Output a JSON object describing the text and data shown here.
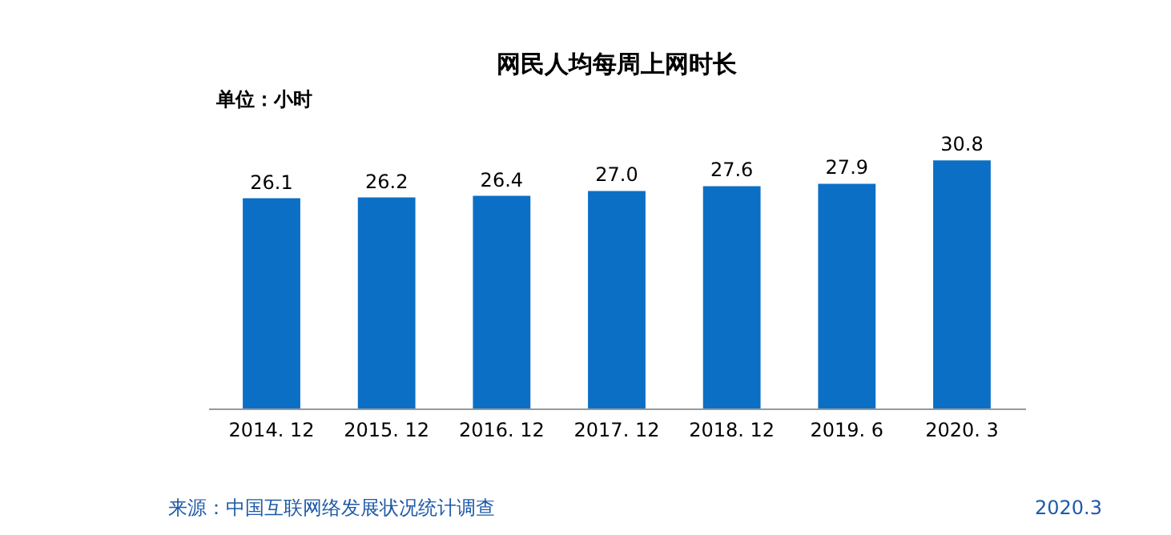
{
  "chart_data": {
    "type": "bar",
    "title": "网民人均每周上网时长",
    "categories": [
      "2014. 12",
      "2015. 12",
      "2016. 12",
      "2017. 12",
      "2018. 12",
      "2019. 6",
      "2020. 3"
    ],
    "values": [
      26.1,
      26.2,
      26.4,
      27.0,
      27.6,
      27.9,
      30.8
    ],
    "color": "#0b6fc6",
    "value_labels": [
      "26.1",
      "26.2",
      "26.4",
      "27.0",
      "27.6",
      "27.9",
      "30.8"
    ],
    "annotations": [
      "单位：小时",
      "来源：中国互联网络发展状况统计调查",
      "2020.3"
    ]
  }
}
